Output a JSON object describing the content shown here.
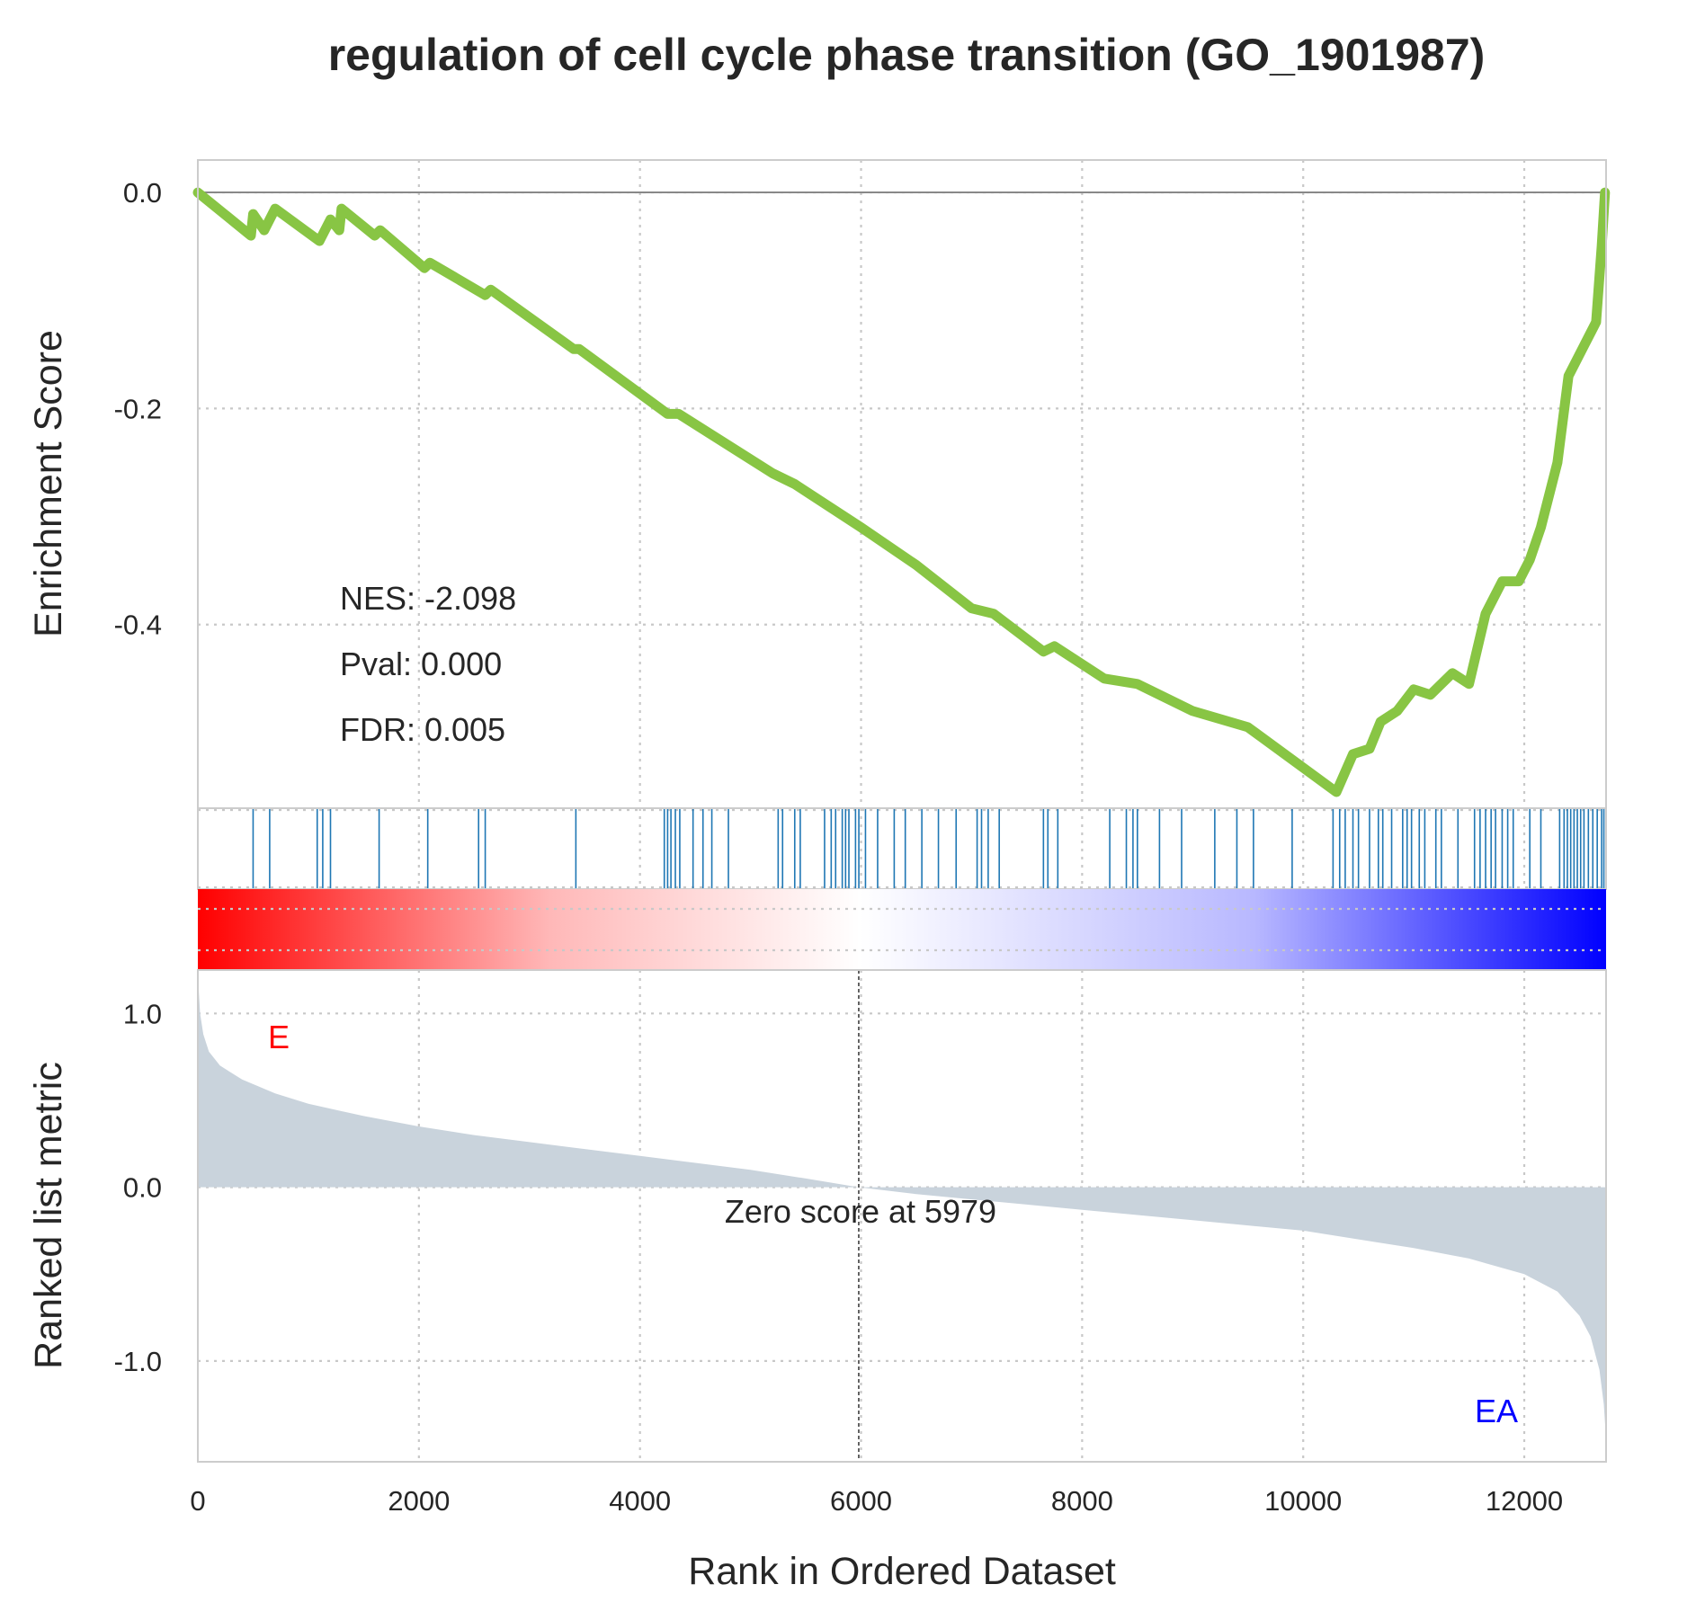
{
  "chart_data": {
    "type": "line",
    "title": "regulation of cell cycle phase transition (GO_1901987)",
    "colors": {
      "es_line": "#88c544",
      "hits": "#1f77b4",
      "metric_fill": "#c9d3dc",
      "pos_label": "#ff0000",
      "neg_label": "#0000ff",
      "high": "#ff0000",
      "low": "#0000ff"
    },
    "enrichment_panel": {
      "ylabel": "Enrichment Score",
      "ylim": [
        -0.57,
        0.03
      ],
      "yticks": [
        0.0,
        -0.2,
        -0.4
      ],
      "ytick_labels": [
        "0.0",
        "-0.2",
        "-0.4"
      ],
      "stats": [
        "NES: -2.098",
        "Pval: 0.000",
        "FDR: 0.005"
      ],
      "es_points": [
        [
          0,
          0.0
        ],
        [
          480,
          -0.04
        ],
        [
          500,
          -0.02
        ],
        [
          600,
          -0.035
        ],
        [
          700,
          -0.015
        ],
        [
          1100,
          -0.045
        ],
        [
          1200,
          -0.025
        ],
        [
          1280,
          -0.035
        ],
        [
          1300,
          -0.015
        ],
        [
          1600,
          -0.04
        ],
        [
          1650,
          -0.035
        ],
        [
          2050,
          -0.07
        ],
        [
          2100,
          -0.065
        ],
        [
          2600,
          -0.095
        ],
        [
          2650,
          -0.09
        ],
        [
          3400,
          -0.145
        ],
        [
          3450,
          -0.145
        ],
        [
          4250,
          -0.205
        ],
        [
          4350,
          -0.205
        ],
        [
          5200,
          -0.26
        ],
        [
          5400,
          -0.27
        ],
        [
          6000,
          -0.31
        ],
        [
          6500,
          -0.345
        ],
        [
          7000,
          -0.385
        ],
        [
          7200,
          -0.39
        ],
        [
          7650,
          -0.425
        ],
        [
          7750,
          -0.42
        ],
        [
          8200,
          -0.45
        ],
        [
          8500,
          -0.455
        ],
        [
          9000,
          -0.48
        ],
        [
          9500,
          -0.495
        ],
        [
          10300,
          -0.555
        ],
        [
          10450,
          -0.52
        ],
        [
          10600,
          -0.515
        ],
        [
          10700,
          -0.49
        ],
        [
          10850,
          -0.48
        ],
        [
          11000,
          -0.46
        ],
        [
          11150,
          -0.465
        ],
        [
          11350,
          -0.445
        ],
        [
          11500,
          -0.455
        ],
        [
          11650,
          -0.39
        ],
        [
          11800,
          -0.36
        ],
        [
          11950,
          -0.36
        ],
        [
          12050,
          -0.34
        ],
        [
          12150,
          -0.31
        ],
        [
          12300,
          -0.25
        ],
        [
          12400,
          -0.17
        ],
        [
          12550,
          -0.14
        ],
        [
          12650,
          -0.12
        ],
        [
          12700,
          -0.05
        ],
        [
          12730,
          0.0
        ]
      ]
    },
    "hits_panel": {
      "positions": [
        500,
        650,
        1080,
        1130,
        1200,
        1640,
        2080,
        2540,
        2600,
        3420,
        4220,
        4250,
        4280,
        4320,
        4360,
        4480,
        4570,
        4650,
        4800,
        5250,
        5290,
        5400,
        5450,
        5670,
        5730,
        5770,
        5830,
        5860,
        5890,
        5950,
        5980,
        6040,
        6150,
        6300,
        6400,
        6550,
        6700,
        6860,
        7050,
        7090,
        7150,
        7250,
        7650,
        7690,
        7780,
        8250,
        8400,
        8460,
        8500,
        8700,
        8900,
        9200,
        9400,
        9550,
        9900,
        10270,
        10330,
        10380,
        10450,
        10500,
        10600,
        10680,
        10720,
        10800,
        10900,
        10940,
        10980,
        11050,
        11100,
        11200,
        11250,
        11400,
        11550,
        11600,
        11650,
        11700,
        11740,
        11800,
        11850,
        11900,
        12050,
        12150,
        12320,
        12360,
        12390,
        12420,
        12450,
        12480,
        12510,
        12540,
        12580,
        12620,
        12660,
        12700,
        12720
      ]
    },
    "heat_bar": {
      "gradient": [
        "#ff0000",
        "#ffb8b8",
        "#ffffff",
        "#b8b8ff",
        "#0000ff"
      ]
    },
    "metric_panel": {
      "ylabel": "Ranked list metric",
      "xlabel": "Rank in Ordered Dataset",
      "ylim": [
        -1.58,
        1.25
      ],
      "yticks": [
        1.0,
        0.0,
        -1.0
      ],
      "ytick_labels": [
        "1.0",
        "0.0",
        "-1.0"
      ],
      "metric_points": [
        [
          0,
          1.22
        ],
        [
          20,
          1.0
        ],
        [
          50,
          0.88
        ],
        [
          100,
          0.78
        ],
        [
          200,
          0.7
        ],
        [
          400,
          0.62
        ],
        [
          700,
          0.54
        ],
        [
          1000,
          0.48
        ],
        [
          1500,
          0.41
        ],
        [
          2000,
          0.35
        ],
        [
          2500,
          0.3
        ],
        [
          3000,
          0.26
        ],
        [
          3500,
          0.22
        ],
        [
          4000,
          0.18
        ],
        [
          4500,
          0.14
        ],
        [
          5000,
          0.1
        ],
        [
          5500,
          0.05
        ],
        [
          5979,
          0.0
        ],
        [
          6500,
          -0.04
        ],
        [
          7000,
          -0.07
        ],
        [
          7500,
          -0.1
        ],
        [
          8000,
          -0.13
        ],
        [
          8500,
          -0.16
        ],
        [
          9000,
          -0.19
        ],
        [
          9500,
          -0.22
        ],
        [
          10000,
          -0.25
        ],
        [
          10500,
          -0.3
        ],
        [
          11000,
          -0.35
        ],
        [
          11500,
          -0.41
        ],
        [
          12000,
          -0.5
        ],
        [
          12300,
          -0.6
        ],
        [
          12500,
          -0.74
        ],
        [
          12600,
          -0.86
        ],
        [
          12680,
          -1.05
        ],
        [
          12720,
          -1.25
        ],
        [
          12740,
          -1.45
        ]
      ],
      "zero_rank": 5979,
      "zero_label": "Zero score at 5979",
      "pos_label": "E",
      "neg_label": "EA"
    },
    "x_axis": {
      "xlim": [
        0,
        12740
      ],
      "xticks": [
        0,
        2000,
        4000,
        6000,
        8000,
        10000,
        12000
      ],
      "xtick_labels": [
        "0",
        "2000",
        "4000",
        "6000",
        "8000",
        "10000",
        "12000"
      ]
    }
  }
}
